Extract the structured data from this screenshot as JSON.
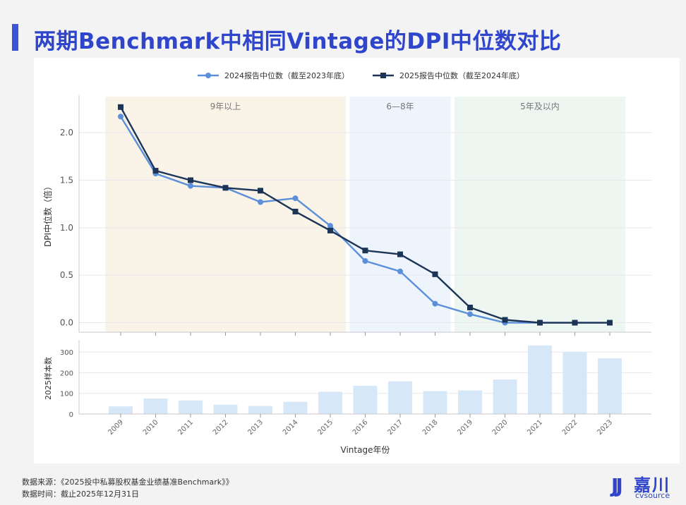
{
  "page_title": "两期Benchmark中相同Vintage的DPI中位数对比",
  "footer": {
    "source": "数据来源：《2025投中私募股权基金业绩基准Benchmark》》",
    "date": "数据时间：截止2025年12月31日"
  },
  "logo": {
    "mark": "JJ",
    "cn": "嘉川",
    "en": "cvsource"
  },
  "colors": {
    "series_2024": "#5b8fd9",
    "series_2025": "#1c3557",
    "band_9plus": "#f9f3e8",
    "band_6to8": "#eef4fc",
    "band_5less": "#eef6f1",
    "bars": "#d6e8f7",
    "accent": "#2f46cc"
  },
  "chart_data": [
    {
      "type": "line",
      "xlabel": "",
      "ylabel": "DPI中位数（倍）",
      "ylim": [
        -0.1,
        2.38
      ],
      "yticks": [
        "0.0",
        "0.5",
        "1.0",
        "1.5",
        "2.0"
      ],
      "ytick_values": [
        0,
        0.5,
        1.0,
        1.5,
        2.0
      ],
      "categories": [
        "2009",
        "2010",
        "2011",
        "2012",
        "2013",
        "2014",
        "2015",
        "2016",
        "2017",
        "2018",
        "2019",
        "2020",
        "2021",
        "2022",
        "2023"
      ],
      "legend_position": "top-center",
      "grid": true,
      "series": [
        {
          "name": "2024报告中位数（截至2023年底）",
          "marker": "circle",
          "values": [
            2.17,
            1.57,
            1.44,
            1.42,
            1.27,
            1.31,
            1.02,
            0.65,
            0.54,
            0.2,
            0.09,
            0.0,
            0.0,
            0.0,
            0.0
          ]
        },
        {
          "name": "2025报告中位数（截至2024年底）",
          "marker": "square",
          "values": [
            2.27,
            1.6,
            1.5,
            1.42,
            1.39,
            1.17,
            0.97,
            0.76,
            0.72,
            0.51,
            0.16,
            0.03,
            0.0,
            0.0,
            0.0
          ]
        }
      ],
      "bands": [
        {
          "label": "9年以上",
          "from": "2009",
          "to": "2015"
        },
        {
          "label": "6—8年",
          "from": "2016",
          "to": "2018"
        },
        {
          "label": "5年及以内",
          "from": "2019",
          "to": "2023"
        }
      ]
    },
    {
      "type": "bar",
      "xlabel": "Vintage年份",
      "ylabel": "2025样本数",
      "ylim": [
        0,
        345
      ],
      "yticks": [
        "0",
        "100",
        "200",
        "300"
      ],
      "ytick_values": [
        0,
        100,
        200,
        300
      ],
      "categories": [
        "2009",
        "2010",
        "2011",
        "2012",
        "2013",
        "2014",
        "2015",
        "2016",
        "2017",
        "2018",
        "2019",
        "2020",
        "2021",
        "2022",
        "2023"
      ],
      "values": [
        37,
        75,
        66,
        45,
        39,
        59,
        108,
        137,
        158,
        111,
        114,
        167,
        332,
        300,
        270
      ]
    }
  ]
}
